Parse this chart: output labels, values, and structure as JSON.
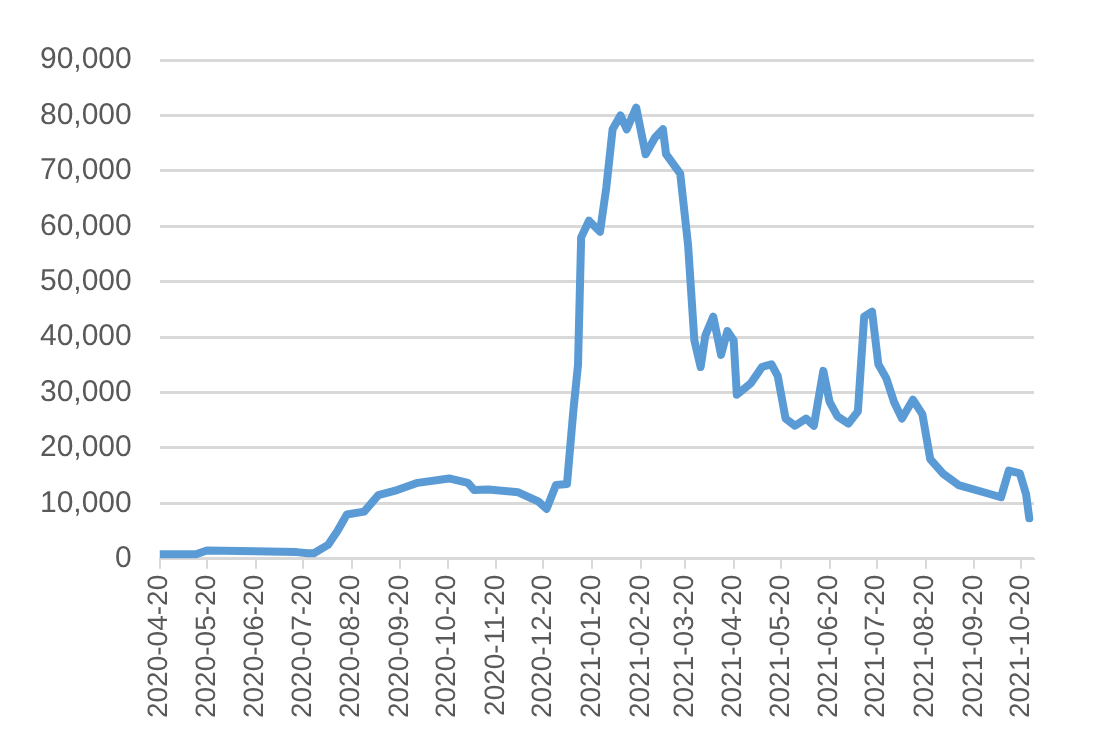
{
  "chart_data": {
    "type": "line",
    "x": [
      "2020-04-20",
      "2020-05-13",
      "2020-05-20",
      "2020-07-16",
      "2020-07-23",
      "2020-07-27",
      "2020-08-05",
      "2020-08-11",
      "2020-08-17",
      "2020-08-28",
      "2020-09-06",
      "2020-09-18",
      "2020-10-01",
      "2020-10-21",
      "2020-11-02",
      "2020-11-06",
      "2020-11-15",
      "2020-12-04",
      "2020-12-17",
      "2020-12-22",
      "2020-12-28",
      "2021-01-04",
      "2021-01-08",
      "2021-01-11",
      "2021-01-13",
      "2021-01-18",
      "2021-01-25",
      "2021-01-29",
      "2021-02-02",
      "2021-02-07",
      "2021-02-11",
      "2021-02-17",
      "2021-02-23",
      "2021-03-01",
      "2021-03-06",
      "2021-03-08",
      "2021-03-17",
      "2021-03-22",
      "2021-03-26",
      "2021-03-30",
      "2021-04-02",
      "2021-04-07",
      "2021-04-12",
      "2021-04-16",
      "2021-04-20",
      "2021-04-22",
      "2021-05-01",
      "2021-05-08",
      "2021-05-14",
      "2021-05-18",
      "2021-05-23",
      "2021-05-29",
      "2021-06-05",
      "2021-06-10",
      "2021-06-16",
      "2021-06-20",
      "2021-06-25",
      "2021-07-02",
      "2021-07-08",
      "2021-07-12",
      "2021-07-17",
      "2021-07-21",
      "2021-07-26",
      "2021-07-31",
      "2021-08-05",
      "2021-08-12",
      "2021-08-18",
      "2021-08-23",
      "2021-08-31",
      "2021-09-10",
      "2021-09-26",
      "2021-10-01",
      "2021-10-07",
      "2021-10-12",
      "2021-10-19",
      "2021-10-23",
      "2021-10-25"
    ],
    "series": [
      {
        "color": "#5b9bd5",
        "values": [
          800,
          800,
          1500,
          1200,
          1000,
          1000,
          2500,
          5000,
          8000,
          8500,
          11500,
          12400,
          13700,
          14500,
          13700,
          12400,
          12500,
          12000,
          10300,
          9000,
          13300,
          13500,
          26600,
          35000,
          58000,
          61000,
          59000,
          67000,
          77500,
          80000,
          77500,
          81400,
          73000,
          76000,
          77500,
          73000,
          69500,
          56600,
          39400,
          34600,
          40300,
          43700,
          36800,
          41100,
          39400,
          29600,
          31700,
          34600,
          35100,
          33000,
          25300,
          24000,
          25300,
          24000,
          33900,
          28300,
          25700,
          24400,
          26600,
          43700,
          44600,
          35100,
          32600,
          28300,
          25300,
          28700,
          26100,
          18000,
          15400,
          13300,
          12000,
          11600,
          11100,
          15900,
          15400,
          11600,
          7300
        ]
      }
    ],
    "xlim": [
      "2020-04-20",
      "2021-10-28"
    ],
    "xticks": [
      "2020-04-20",
      "2020-05-20",
      "2020-06-20",
      "2020-07-20",
      "2020-08-20",
      "2020-09-20",
      "2020-10-20",
      "2020-11-20",
      "2020-12-20",
      "2021-01-20",
      "2021-02-20",
      "2021-03-20",
      "2021-04-20",
      "2021-05-20",
      "2021-06-20",
      "2021-07-20",
      "2021-08-20",
      "2021-09-20",
      "2021-10-20"
    ],
    "ylim": [
      0,
      90000
    ],
    "yticks": [
      {
        "value": 0,
        "label": "0"
      },
      {
        "value": 10000,
        "label": "10,000"
      },
      {
        "value": 20000,
        "label": "20,000"
      },
      {
        "value": 30000,
        "label": "30,000"
      },
      {
        "value": 40000,
        "label": "40,000"
      },
      {
        "value": 50000,
        "label": "50,000"
      },
      {
        "value": 60000,
        "label": "60,000"
      },
      {
        "value": 70000,
        "label": "70,000"
      },
      {
        "value": 80000,
        "label": "80,000"
      },
      {
        "value": 90000,
        "label": "90,000"
      }
    ],
    "grid": "y",
    "marker": "none",
    "line_style": "solid"
  }
}
